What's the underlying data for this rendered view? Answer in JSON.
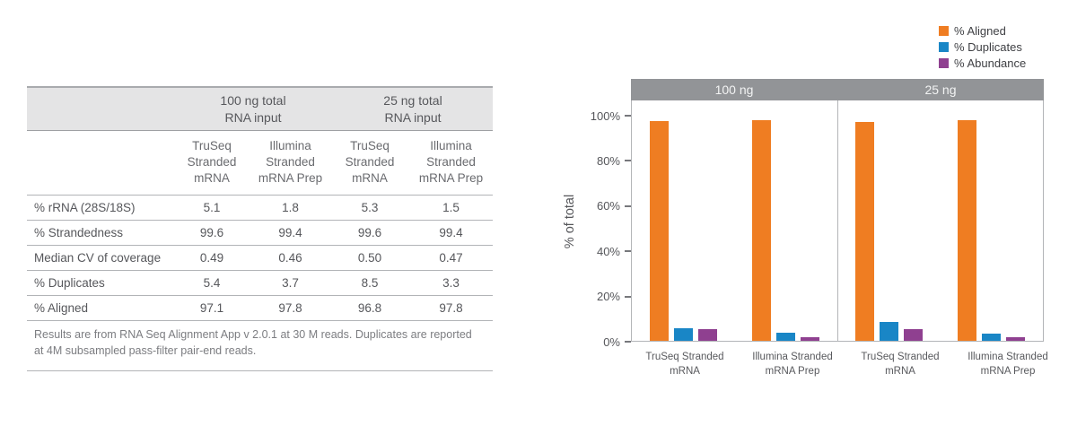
{
  "table": {
    "group_headers": [
      {
        "label": "100 ng total\nRNA input"
      },
      {
        "label": "25 ng total\nRNA input"
      }
    ],
    "column_headers": [
      "TruSeq\nStranded\nmRNA",
      "Illumina\nStranded\nmRNA Prep",
      "TruSeq\nStranded\nmRNA",
      "Illumina\nStranded\nmRNA Prep"
    ],
    "rows": [
      {
        "label": "% rRNA (28S/18S)",
        "values": [
          "5.1",
          "1.8",
          "5.3",
          "1.5"
        ]
      },
      {
        "label": "% Strandedness",
        "values": [
          "99.6",
          "99.4",
          "99.6",
          "99.4"
        ]
      },
      {
        "label": "Median CV of coverage",
        "values": [
          "0.49",
          "0.46",
          "0.50",
          "0.47"
        ]
      },
      {
        "label": "% Duplicates",
        "values": [
          "5.4",
          "3.7",
          "8.5",
          "3.3"
        ]
      },
      {
        "label": "% Aligned",
        "values": [
          "97.1",
          "97.8",
          "96.8",
          "97.8"
        ]
      }
    ],
    "footnote": "Results are from RNA Seq Alignment App v 2.0.1 at 30 M reads. Duplicates are reported at 4M subsampled pass-filter pair-end reads."
  },
  "chart_data": {
    "type": "bar",
    "ylabel": "% of total",
    "ylim": [
      0,
      100
    ],
    "ytick_step": 20,
    "ytick_labels": [
      "0%",
      "20%",
      "40%",
      "60%",
      "80%",
      "100%"
    ],
    "grid": false,
    "legend_position": "top-right",
    "panel_titles": [
      "100 ng",
      "25 ng"
    ],
    "categories": [
      "TruSeq Stranded\nmRNA",
      "Illumina Stranded\nmRNA Prep",
      "TruSeq Stranded\nmRNA",
      "Illumina Stranded\nmRNA Prep"
    ],
    "category_panels": [
      0,
      0,
      1,
      1
    ],
    "series": [
      {
        "key": "aligned",
        "name": "% Aligned",
        "color": "#EF7D22",
        "values": [
          97.1,
          97.8,
          96.8,
          97.8
        ]
      },
      {
        "key": "duplicates",
        "name": "% Duplicates",
        "color": "#1986C6",
        "values": [
          5.4,
          3.7,
          8.5,
          3.3
        ]
      },
      {
        "key": "abundance",
        "name": "% Abundance",
        "color": "#8F4090",
        "values": [
          5.1,
          1.8,
          5.3,
          1.5
        ]
      }
    ]
  },
  "colors": {
    "panel_band": "#929497",
    "table_header_bg": "#E4E4E5",
    "plot_border": "#B3B5B8",
    "text_dark": "#56575B",
    "text_muted": "#7C7D81"
  }
}
